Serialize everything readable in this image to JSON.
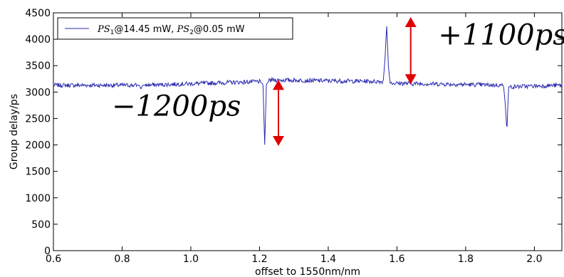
{
  "chart_data": {
    "type": "line",
    "xlabel": "offset to 1550nm/nm",
    "ylabel": "Group delay/ps",
    "xlim": [
      0.6,
      2.08
    ],
    "ylim": [
      0,
      4500
    ],
    "xticks": [
      0.6,
      0.8,
      1.0,
      1.2,
      1.4,
      1.6,
      1.8,
      2.0
    ],
    "xtick_labels": [
      "0.6",
      "0.8",
      "1.0",
      "1.2",
      "1.4",
      "1.6",
      "1.8",
      "2.0"
    ],
    "yticks": [
      0,
      500,
      1000,
      1500,
      2000,
      2500,
      3000,
      3500,
      4000,
      4500
    ],
    "ytick_labels": [
      "0",
      "500",
      "1000",
      "1500",
      "2000",
      "2500",
      "3000",
      "3500",
      "4000",
      "4500"
    ],
    "grid": false,
    "legend_position": "top-left",
    "series": [
      {
        "name": "PS1@14.45 mW, PS2@0.05 mW",
        "name_parts": {
          "a": "PS",
          "a_sub": "1",
          "b": "@14.45 mW, ",
          "c": "PS",
          "c_sub": "2",
          "d": "@0.05 mW"
        },
        "color": "#2b2bb0",
        "baseline": 3130,
        "noise": 40,
        "x": [
          0.6,
          0.85,
          0.855,
          0.86,
          1.2,
          1.21,
          1.215,
          1.22,
          1.23,
          1.56,
          1.565,
          1.57,
          1.575,
          1.58,
          1.91,
          1.915,
          1.92,
          1.925,
          2.08
        ],
        "y": [
          3130,
          3130,
          3060,
          3130,
          3200,
          3150,
          2000,
          3150,
          3230,
          3200,
          3600,
          4280,
          3500,
          3170,
          3130,
          2800,
          2260,
          3100,
          3130
        ]
      }
    ],
    "annotations": [
      {
        "text": "+1100ps",
        "x": 1.72,
        "y": 3900
      },
      {
        "text": "−1200ps",
        "x": 0.77,
        "y": 2550
      }
    ],
    "arrows": [
      {
        "x": 1.64,
        "y_from": 3150,
        "y_to": 4420,
        "color": "#e00000"
      },
      {
        "x": 1.255,
        "y_from": 1980,
        "y_to": 3230,
        "color": "#e00000"
      }
    ]
  }
}
